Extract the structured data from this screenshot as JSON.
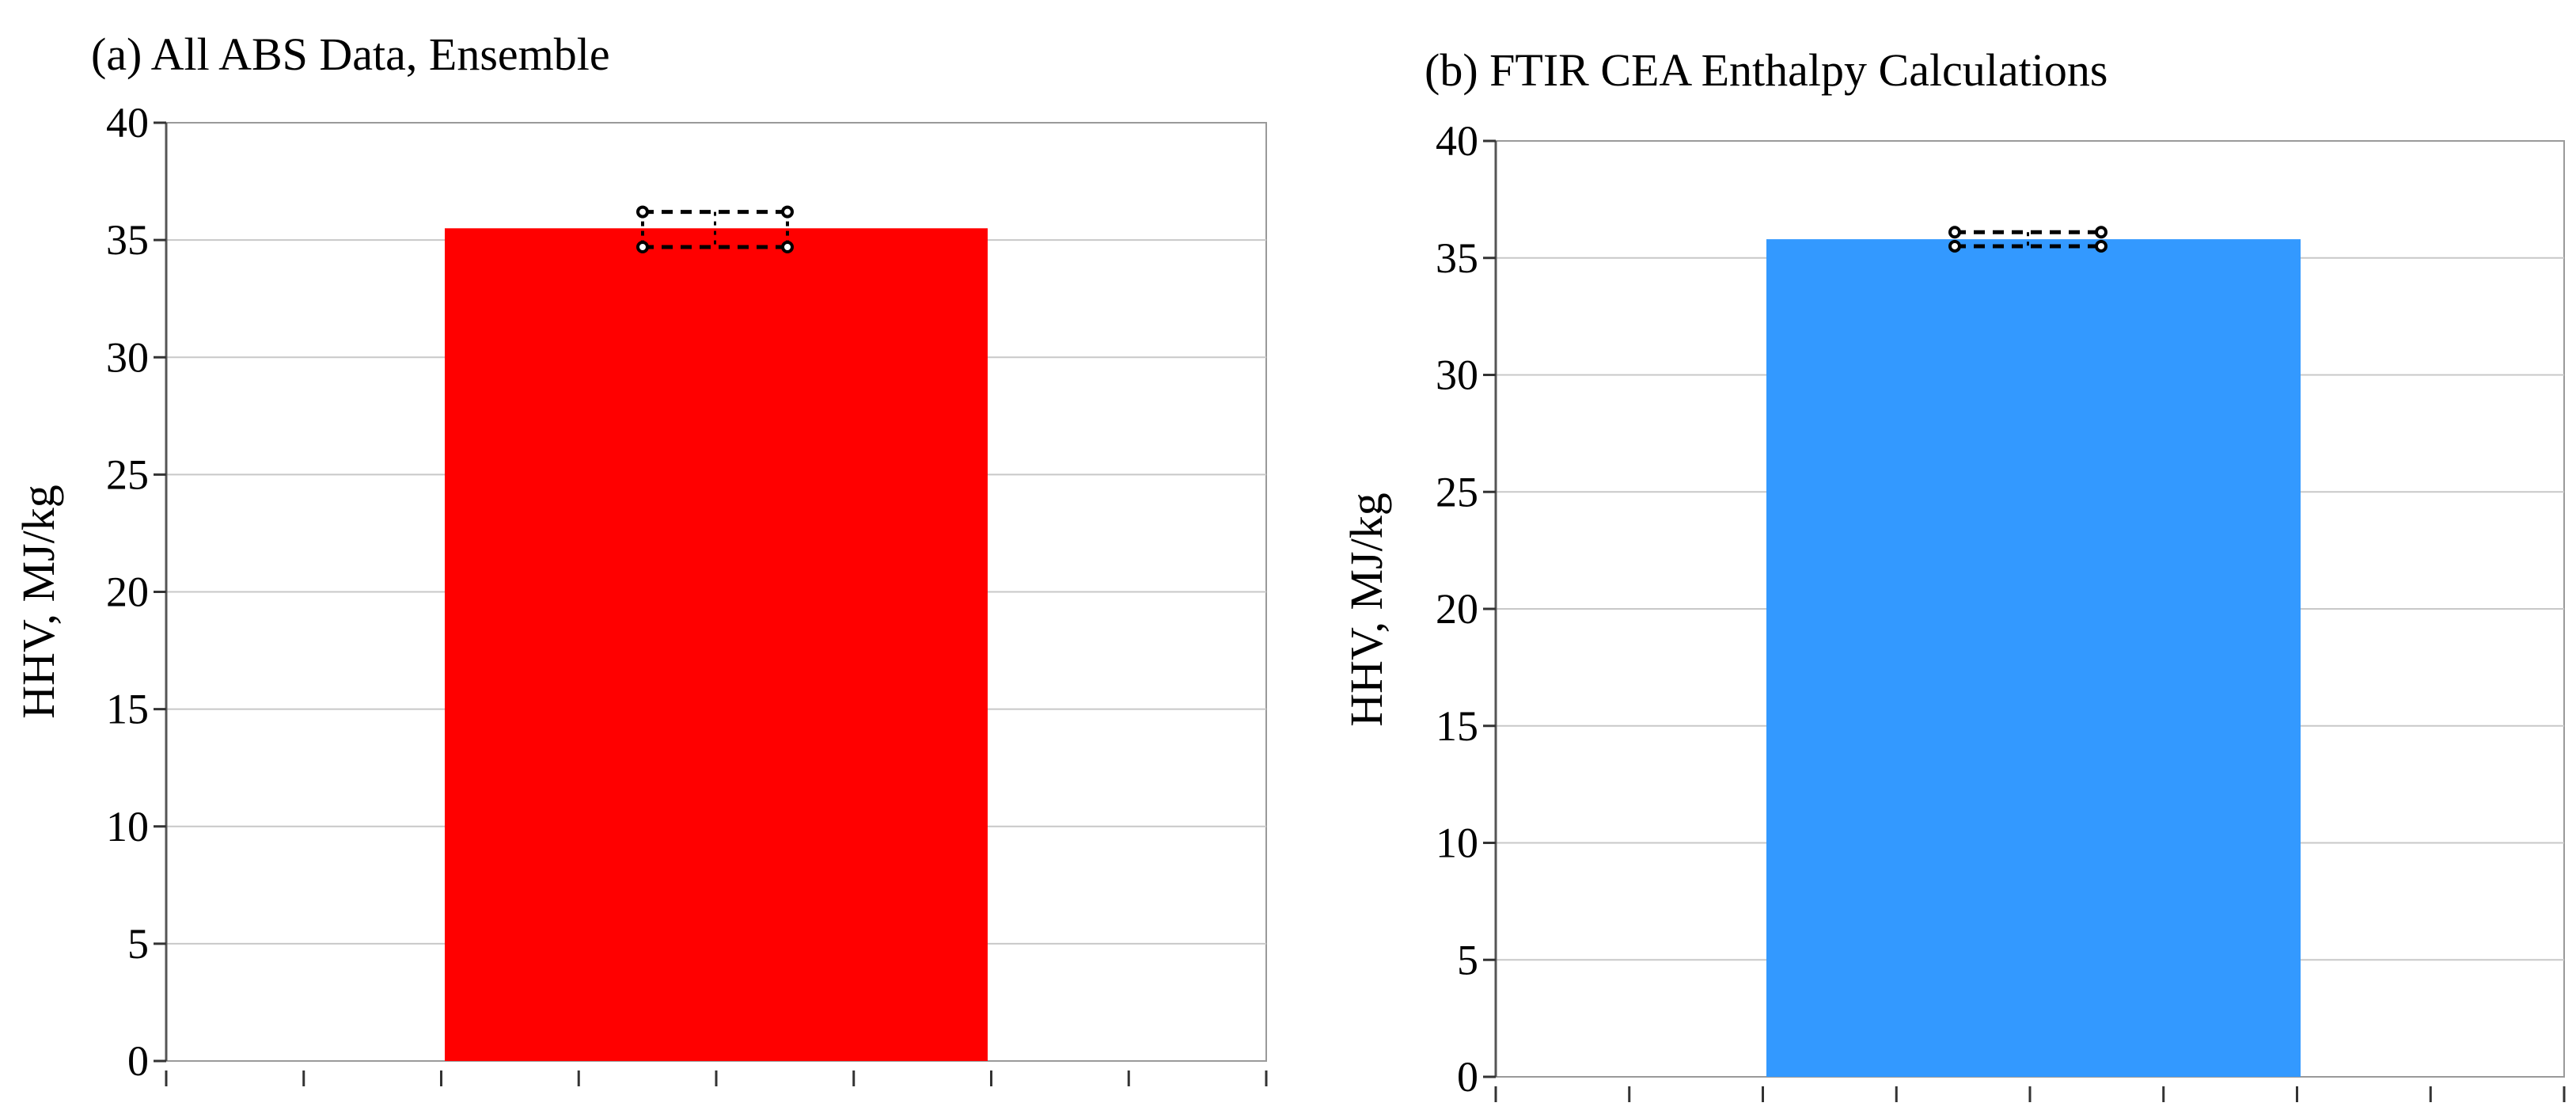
{
  "chart_data": [
    {
      "type": "bar",
      "title": "(a) All ABS Data, Ensemble",
      "xlabel": "",
      "ylabel": "HHV, MJ/kg",
      "ylim": [
        0,
        40
      ],
      "yticks": [
        0,
        5,
        10,
        15,
        20,
        25,
        30,
        35,
        40
      ],
      "grid": true,
      "categories": [
        ""
      ],
      "values": [
        35.5
      ],
      "color": "#ff0000",
      "error_range": [
        34.7,
        36.2
      ],
      "x_tick_count": 9
    },
    {
      "type": "bar",
      "title": "(b) FTIR CEA Enthalpy Calculations",
      "xlabel": "",
      "ylabel": "HHV, MJ/kg",
      "ylim": [
        0,
        40
      ],
      "yticks": [
        0,
        5,
        10,
        15,
        20,
        25,
        30,
        35,
        40
      ],
      "grid": true,
      "categories": [
        ""
      ],
      "values": [
        35.8
      ],
      "color": "#3399ff",
      "error_range": [
        35.5,
        36.1
      ],
      "x_tick_count": 9
    }
  ]
}
